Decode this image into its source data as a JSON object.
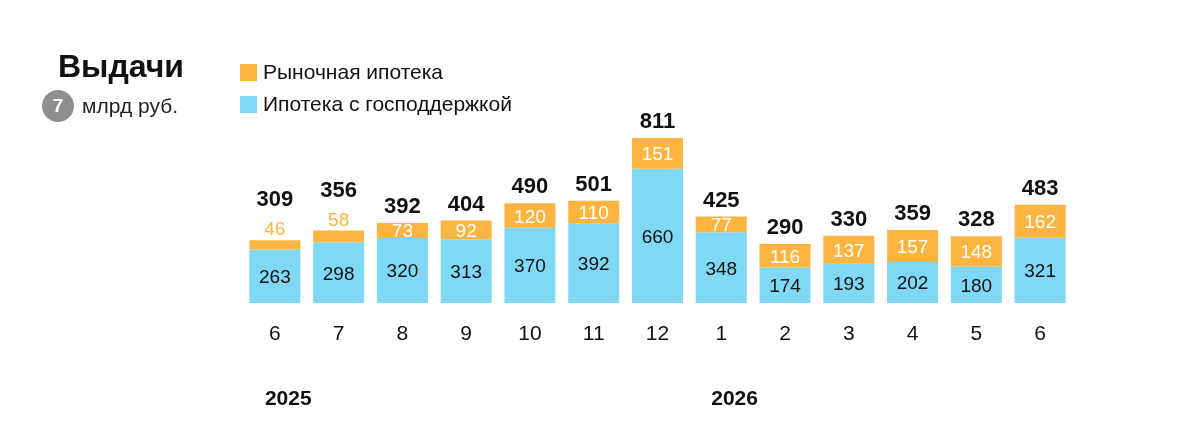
{
  "chart_data": {
    "type": "bar",
    "title": "Выдачи",
    "subtitle": "млрд руб.",
    "stacked": true,
    "data_labels": true,
    "legend": "top left",
    "categories": [
      "6",
      "7",
      "8",
      "9",
      "10",
      "11",
      "12",
      "1",
      "2",
      "3",
      "4",
      "5",
      "6"
    ],
    "series": [
      {
        "name": "Ипотека с господдержкой",
        "color": "#7fd8f5",
        "values": [
          263,
          298,
          320,
          313,
          370,
          392,
          660,
          348,
          174,
          193,
          202,
          180,
          321
        ]
      },
      {
        "name": "Рыночная ипотека",
        "color": "#fbb540",
        "values": [
          46,
          58,
          73,
          92,
          120,
          110,
          151,
          77,
          116,
          137,
          157,
          148,
          162
        ]
      }
    ],
    "totals": [
      "309",
      "356",
      "392",
      "404",
      "490",
      "501",
      "811",
      "425",
      "290",
      "330",
      "359",
      "328",
      "483"
    ],
    "annotations": [
      "7",
      "2025",
      "2026"
    ]
  }
}
